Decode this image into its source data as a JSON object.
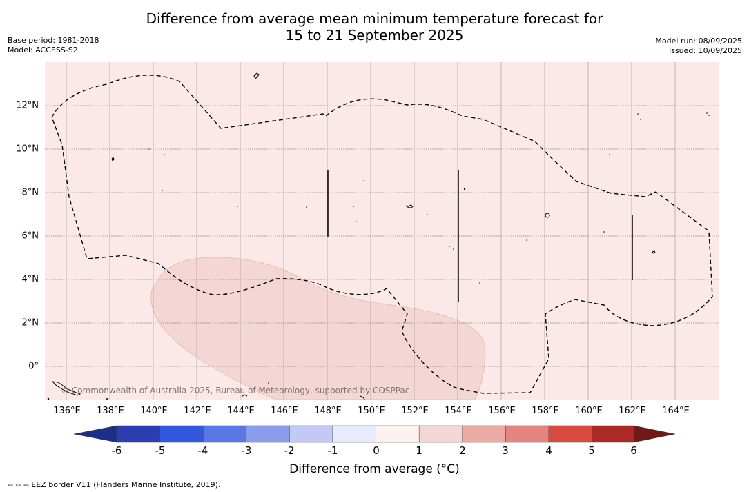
{
  "header": {
    "title_line1": "Difference from average mean minimum temperature forecast for",
    "title_line2": "15 to 21 September 2025",
    "base_period": "Base period: 1981-2018",
    "model": "Model: ACCESS-S2",
    "model_run": "Model run: 08/09/2025",
    "issued": "Issued: 10/09/2025"
  },
  "map": {
    "copyright": "© Commonwealth of Australia 2025, Bureau of Meteorology, supported by COSPPac",
    "lon_labels": [
      "136°E",
      "138°E",
      "140°E",
      "142°E",
      "144°E",
      "146°E",
      "148°E",
      "150°E",
      "152°E",
      "154°E",
      "156°E",
      "158°E",
      "160°E",
      "162°E",
      "164°E"
    ],
    "lat_labels": [
      "12°N",
      "10°N",
      "8°N",
      "6°N",
      "4°N",
      "2°N",
      "0°"
    ],
    "background_color": "#fbe9e8",
    "anomaly_patch_color": "#f4d6d4"
  },
  "colorbar": {
    "ticks": [
      "-6",
      "-5",
      "-4",
      "-3",
      "-2",
      "-1",
      "0",
      "1",
      "2",
      "3",
      "4",
      "5",
      "6"
    ],
    "colors": [
      "#1c2f86",
      "#2a3eb1",
      "#3457e0",
      "#5b76e6",
      "#8a9ded",
      "#c2c9f5",
      "#e8ebfb",
      "#fdf0ef",
      "#f4d6d4",
      "#eaaaa5",
      "#e3847e",
      "#d74a40",
      "#ab2a25",
      "#701a17"
    ],
    "title": "Difference from average (°C)"
  },
  "footnote": "-- -- -- EEZ border V11 (Flanders Marine Institute, 2019)."
}
